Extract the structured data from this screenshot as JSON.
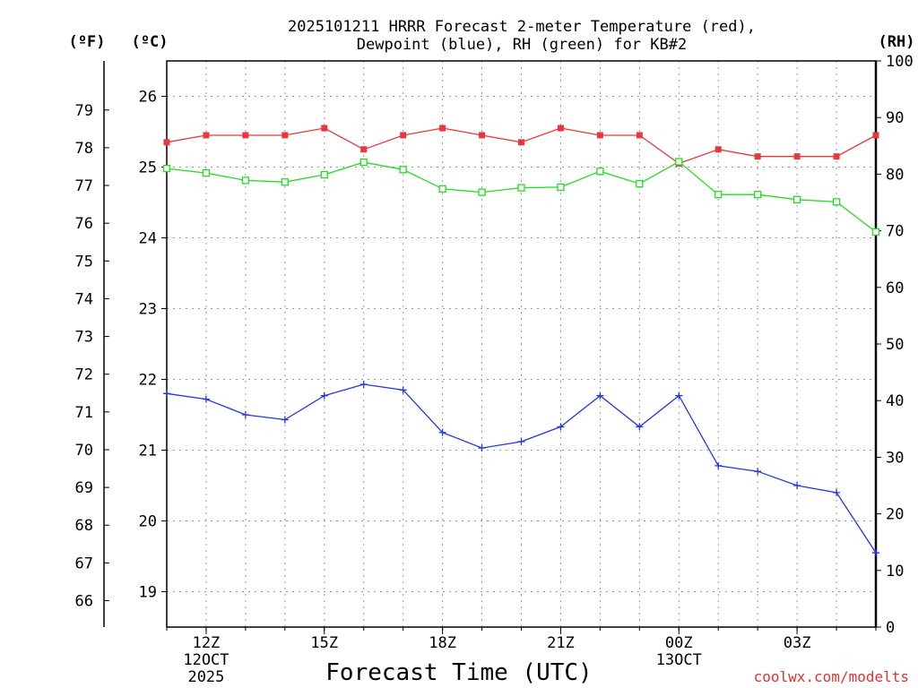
{
  "chart_data": {
    "type": "line",
    "title_line1": "2025101211 HRRR Forecast 2-meter Temperature (red),",
    "title_line2": "Dewpoint (blue), RH (green) for KB#2",
    "xlabel": "Forecast Time (UTC)",
    "credit": "coolwx.com/modelts",
    "axes": {
      "fahrenheit": {
        "unit_label": "(ºF)",
        "range": [
          65.3,
          80.3
        ],
        "ticks": [
          66,
          67,
          68,
          69,
          70,
          71,
          72,
          73,
          74,
          75,
          76,
          77,
          78,
          79
        ]
      },
      "celsius": {
        "unit_label": "(ºC)",
        "range": [
          18.5,
          26.5
        ],
        "ticks": [
          19,
          20,
          21,
          22,
          23,
          24,
          25,
          26
        ]
      },
      "rh": {
        "unit_label": "(RH)",
        "range": [
          0,
          100
        ],
        "ticks": [
          0,
          10,
          20,
          30,
          40,
          50,
          60,
          70,
          80,
          90,
          100
        ]
      }
    },
    "x": {
      "range": [
        11,
        29
      ],
      "ticks": [
        {
          "hour": 12,
          "label": "12Z",
          "sub1": "12OCT",
          "sub2": "2025"
        },
        {
          "hour": 15,
          "label": "15Z",
          "sub1": "",
          "sub2": ""
        },
        {
          "hour": 18,
          "label": "18Z",
          "sub1": "",
          "sub2": ""
        },
        {
          "hour": 21,
          "label": "21Z",
          "sub1": "",
          "sub2": ""
        },
        {
          "hour": 24,
          "label": "00Z",
          "sub1": "13OCT",
          "sub2": ""
        },
        {
          "hour": 27,
          "label": "03Z",
          "sub1": "",
          "sub2": ""
        }
      ]
    },
    "series": [
      {
        "name": "2-meter Temperature",
        "color": "#e8383c",
        "units": "°C",
        "axis": "celsius",
        "marker": "filled-square",
        "x": [
          11,
          12,
          13,
          14,
          15,
          16,
          17,
          18,
          19,
          20,
          21,
          22,
          23,
          24,
          25,
          26,
          27,
          28,
          29
        ],
        "values": [
          25.35,
          25.45,
          25.45,
          25.45,
          25.55,
          25.25,
          25.45,
          25.55,
          25.45,
          25.35,
          25.55,
          25.45,
          25.45,
          25.05,
          25.25,
          25.15,
          25.15,
          25.15,
          25.45
        ]
      },
      {
        "name": "Dewpoint",
        "color": "#2236e6",
        "units": "°C",
        "axis": "celsius",
        "marker": "plus",
        "x": [
          11,
          12,
          13,
          14,
          15,
          16,
          17,
          18,
          19,
          20,
          21,
          22,
          23,
          24,
          25,
          26,
          27,
          28,
          29
        ],
        "values": [
          21.8,
          21.72,
          21.5,
          21.43,
          21.77,
          21.93,
          21.85,
          21.25,
          21.03,
          21.12,
          21.33,
          21.77,
          21.33,
          21.77,
          20.78,
          20.7,
          20.5,
          20.4,
          19.55
        ]
      },
      {
        "name": "Relative Humidity",
        "color": "#22dd22",
        "units": "%",
        "axis": "rh",
        "marker": "open-square",
        "x": [
          11,
          12,
          13,
          14,
          15,
          16,
          17,
          18,
          19,
          20,
          21,
          22,
          23,
          24,
          25,
          26,
          27,
          28,
          29
        ],
        "values": [
          81,
          80.2,
          78.9,
          78.6,
          79.9,
          82.1,
          80.8,
          77.4,
          76.8,
          77.6,
          77.7,
          80.5,
          78.3,
          82.2,
          76.4,
          76.4,
          75.5,
          75.1,
          69.8
        ]
      }
    ]
  }
}
